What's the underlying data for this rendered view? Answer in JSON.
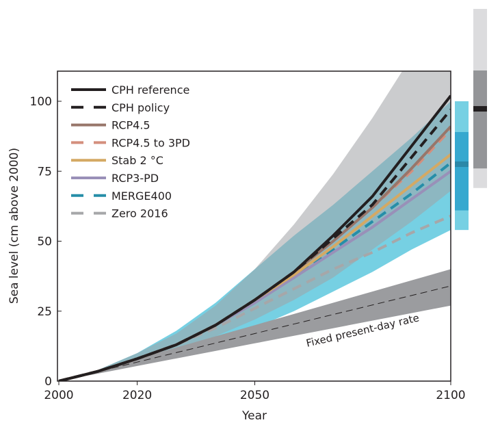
{
  "chart_data": {
    "type": "line",
    "title": "",
    "xlabel": "Year",
    "ylabel": "Sea level (cm above 2000)",
    "xlim": [
      2000,
      2100
    ],
    "ylim": [
      0,
      111
    ],
    "xticks": [
      2000,
      2020,
      2050,
      2100
    ],
    "yticks": [
      0,
      25,
      50,
      75,
      100
    ],
    "grid": false,
    "legend_placement": "top-left",
    "x": [
      2000,
      2010,
      2020,
      2030,
      2040,
      2050,
      2060,
      2070,
      2080,
      2090,
      2100
    ],
    "series": [
      {
        "name": "CPH reference",
        "color": "#231f20",
        "dash": false,
        "values": [
          0,
          3.5,
          8,
          13,
          20,
          29,
          39,
          52,
          66,
          84,
          102
        ]
      },
      {
        "name": "CPH policy",
        "color": "#231f20",
        "dash": true,
        "values": [
          0,
          3.5,
          8,
          13,
          20,
          29,
          39,
          51,
          63,
          80,
          97
        ]
      },
      {
        "name": "RCP4.5",
        "color": "#98766a",
        "dash": false,
        "values": [
          0,
          3.5,
          8,
          13,
          20,
          29,
          39,
          50,
          62,
          76,
          91
        ]
      },
      {
        "name": "RCP4.5 to 3PD",
        "color": "#d48f7d",
        "dash": true,
        "values": [
          0,
          3.5,
          8,
          13,
          20,
          29,
          39,
          50,
          62,
          75,
          90
        ]
      },
      {
        "name": "Stab 2 °C",
        "color": "#d4a964",
        "dash": false,
        "values": [
          0,
          3.5,
          8,
          13,
          20,
          29,
          38,
          48,
          59,
          70,
          81
        ]
      },
      {
        "name": "RCP3-PD",
        "color": "#9990b8",
        "dash": false,
        "values": [
          0,
          3.5,
          8,
          13,
          20,
          28,
          37,
          46,
          55,
          65,
          75
        ]
      },
      {
        "name": "MERGE400",
        "color": "#268ea8",
        "dash": true,
        "values": [
          0,
          3.5,
          8,
          13,
          20,
          29,
          37,
          47,
          57,
          67,
          78
        ]
      },
      {
        "name": "Zero 2016",
        "color": "#a6a7a9",
        "dash": true,
        "values": [
          0,
          3.5,
          8,
          13,
          19,
          26,
          33,
          40,
          46,
          53,
          59
        ]
      }
    ],
    "bands": [
      {
        "color": "#76d0e3",
        "lower": [
          0,
          3,
          6,
          10,
          14,
          19,
          25,
          32,
          39,
          47,
          54
        ],
        "upper": [
          0,
          4,
          10,
          18,
          28,
          40,
          52,
          63,
          75,
          87,
          100
        ]
      },
      {
        "color": "#a0a3a6",
        "lower": [
          0,
          3,
          7,
          11,
          16,
          22,
          29,
          37,
          47,
          57,
          68
        ],
        "upper": [
          0,
          4,
          10,
          17,
          27,
          40,
          56,
          74,
          94,
          116,
          138
        ]
      },
      {
        "color": "#9b9c9f",
        "lower": [
          0,
          2.7,
          5.4,
          8.1,
          10.8,
          13.5,
          16.2,
          18.9,
          21.6,
          24.3,
          27
        ],
        "upper": [
          0,
          4,
          8,
          12,
          16,
          20,
          24,
          28,
          32,
          36,
          40
        ]
      }
    ],
    "fixed_rate": {
      "label": "Fixed present-day rate",
      "values": [
        0,
        3.4,
        6.8,
        10.2,
        13.6,
        17,
        20.4,
        23.8,
        27.2,
        30.6,
        34
      ]
    },
    "side_bars": [
      {
        "outer": [
          54,
          100
        ],
        "inner": [
          61,
          89
        ],
        "median": 77.5,
        "colors": [
          "#76d0e3",
          "#36a8cf",
          "#2b88a8"
        ]
      },
      {
        "outer": [
          69,
          133
        ],
        "inner": [
          76,
          111
        ],
        "median": 97.3,
        "colors": [
          "#dcdcde",
          "#949598",
          "#231f20"
        ]
      }
    ]
  }
}
